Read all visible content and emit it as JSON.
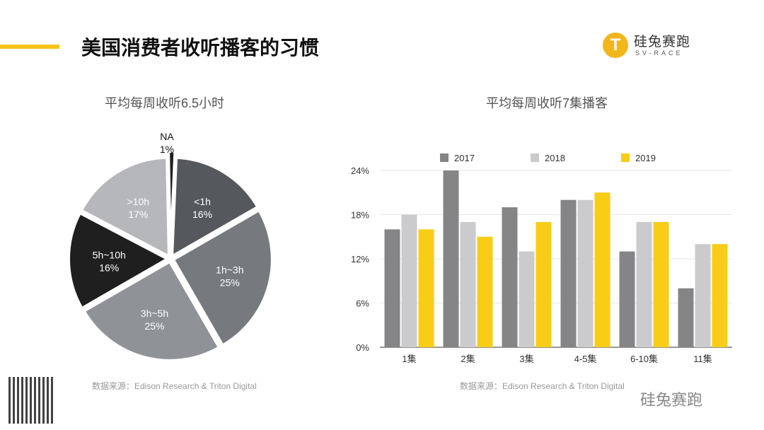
{
  "title": "美国消费者收听播客的习惯",
  "logo": {
    "cn": "硅兔赛跑",
    "en": "SV-RACE"
  },
  "watermark": "硅兔赛跑",
  "chart_data": [
    {
      "type": "pie",
      "title": "平均每周收听6.5小时",
      "slices": [
        {
          "label": "NA",
          "value": 1,
          "pct": "1%",
          "color": "#1e1e1e"
        },
        {
          "label": "<1h",
          "value": 16,
          "pct": "16%",
          "color": "#55585c"
        },
        {
          "label": "1h~3h",
          "value": 25,
          "pct": "25%",
          "color": "#76797e"
        },
        {
          "label": "3h~5h",
          "value": 25,
          "pct": "25%",
          "color": "#8f9297"
        },
        {
          "label": "5h~10h",
          "value": 16,
          "pct": "16%",
          "color": "#1f1f20"
        },
        {
          "label": ">10h",
          "value": 17,
          "pct": "17%",
          "color": "#b6b7bb"
        }
      ],
      "source": "数据来源：Edison Research & Triton Digital"
    },
    {
      "type": "bar",
      "title": "平均每周收听7集播客",
      "categories": [
        "1集",
        "2集",
        "3集",
        "4-5集",
        "6-10集",
        "11集"
      ],
      "series": [
        {
          "name": "2017",
          "color": "#858587",
          "values": [
            16,
            24,
            19,
            20,
            13,
            8
          ]
        },
        {
          "name": "2018",
          "color": "#cbcbcd",
          "values": [
            18,
            17,
            13,
            20,
            17,
            14
          ]
        },
        {
          "name": "2019",
          "color": "#f9cc16",
          "values": [
            16,
            15,
            17,
            21,
            17,
            14
          ]
        }
      ],
      "yticks": [
        "0%",
        "6%",
        "12%",
        "18%",
        "24%"
      ],
      "ylim": [
        0,
        24
      ],
      "grid": true,
      "legend": "top",
      "source": "数据来源：Edison Research & Triton Digital"
    }
  ]
}
